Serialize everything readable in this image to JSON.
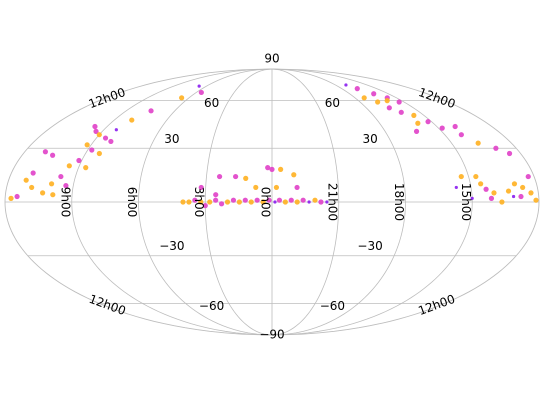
{
  "chart_data": {
    "type": "scatter",
    "projection": "mollweide",
    "grid": true,
    "colors": {
      "magenta": "#e040c8",
      "orange": "#ffb020",
      "purple": "#8a1cf0",
      "grid": "#bdbdbd"
    },
    "lat_labels": [
      {
        "id": "lat-90n",
        "text": "90",
        "lat": 90
      },
      {
        "id": "lat-60n-left",
        "text": "60",
        "lat": 60,
        "side": "left"
      },
      {
        "id": "lat-60n-right",
        "text": "60",
        "lat": 60,
        "side": "right"
      },
      {
        "id": "lat-30n-left",
        "text": "30",
        "lat": 30,
        "side": "left"
      },
      {
        "id": "lat-30n-right",
        "text": "30",
        "lat": 30,
        "side": "right"
      },
      {
        "id": "lat-30s-left",
        "text": "−30",
        "lat": -30,
        "side": "left"
      },
      {
        "id": "lat-30s-right",
        "text": "−30",
        "lat": -30,
        "side": "right"
      },
      {
        "id": "lat-60s-left",
        "text": "−60",
        "lat": -60,
        "side": "left"
      },
      {
        "id": "lat-60s-right",
        "text": "−60",
        "lat": -60,
        "side": "right"
      },
      {
        "id": "lat-90s",
        "text": "−90",
        "lat": -90
      }
    ],
    "ra_labels": [
      {
        "id": "ra-0h",
        "text": "0h00",
        "lon": 0
      },
      {
        "id": "ra-3h",
        "text": "3h00",
        "lon": 45
      },
      {
        "id": "ra-6h",
        "text": "6h00",
        "lon": 90
      },
      {
        "id": "ra-9h",
        "text": "9h00",
        "lon": 135
      },
      {
        "id": "ra-21h",
        "text": "21h00",
        "lon": -45
      },
      {
        "id": "ra-18h",
        "text": "18h00",
        "lon": -90
      },
      {
        "id": "ra-15h",
        "text": "15h00",
        "lon": -135
      }
    ],
    "edge_labels": [
      {
        "id": "ra-12h-top-left",
        "text": "12h00",
        "lat": 60,
        "side": "left"
      },
      {
        "id": "ra-12h-top-right",
        "text": "12h00",
        "lat": 60,
        "side": "right"
      },
      {
        "id": "ra-12h-bottom-left",
        "text": "12h00",
        "lat": -60,
        "side": "left"
      },
      {
        "id": "ra-12h-bottom-right",
        "text": "12h00",
        "lat": -60,
        "side": "right"
      }
    ],
    "points": [
      {
        "lon": 2,
        "lat": 1,
        "c": "magenta"
      },
      {
        "lon": 6,
        "lat": 0,
        "c": "orange"
      },
      {
        "lon": 10,
        "lat": 1,
        "c": "magenta"
      },
      {
        "lon": 14,
        "lat": 0,
        "c": "orange"
      },
      {
        "lon": 18,
        "lat": 1,
        "c": "magenta"
      },
      {
        "lon": 22,
        "lat": 0,
        "c": "orange"
      },
      {
        "lon": 26,
        "lat": 1,
        "c": "magenta"
      },
      {
        "lon": 30,
        "lat": 0,
        "c": "orange"
      },
      {
        "lon": 34,
        "lat": -1,
        "c": "magenta"
      },
      {
        "lon": 38,
        "lat": 1,
        "c": "magenta"
      },
      {
        "lon": 42,
        "lat": 0,
        "c": "orange"
      },
      {
        "lon": 45,
        "lat": -2,
        "c": "magenta"
      },
      {
        "lon": 48,
        "lat": 0,
        "c": "orange"
      },
      {
        "lon": 52,
        "lat": 1,
        "c": "magenta"
      },
      {
        "lon": 56,
        "lat": 0,
        "c": "orange"
      },
      {
        "lon": 60,
        "lat": 0,
        "c": "orange"
      },
      {
        "lon": -2,
        "lat": 0,
        "c": "purple"
      },
      {
        "lon": -5,
        "lat": 1,
        "c": "magenta"
      },
      {
        "lon": -9,
        "lat": 0,
        "c": "orange"
      },
      {
        "lon": -13,
        "lat": 1,
        "c": "magenta"
      },
      {
        "lon": -17,
        "lat": 0,
        "c": "orange"
      },
      {
        "lon": -21,
        "lat": 1,
        "c": "magenta"
      },
      {
        "lon": -25,
        "lat": 0,
        "c": "purple"
      },
      {
        "lon": -29,
        "lat": 1,
        "c": "orange"
      },
      {
        "lon": -33,
        "lat": 0,
        "c": "magenta"
      },
      {
        "lon": -37,
        "lat": 0,
        "c": "purple"
      },
      {
        "lon": 3,
        "lat": 19,
        "c": "magenta"
      },
      {
        "lon": 0,
        "lat": 18,
        "c": "magenta"
      },
      {
        "lon": -6,
        "lat": 18,
        "c": "orange"
      },
      {
        "lon": -15,
        "lat": 15,
        "c": "orange"
      },
      {
        "lon": -17,
        "lat": 8,
        "c": "magenta"
      },
      {
        "lon": -3,
        "lat": 8,
        "c": "orange"
      },
      {
        "lon": 11,
        "lat": 8,
        "c": "orange"
      },
      {
        "lon": 25,
        "lat": 14,
        "c": "magenta"
      },
      {
        "lon": 18,
        "lat": 13,
        "c": "orange"
      },
      {
        "lon": 36,
        "lat": 14,
        "c": "magenta"
      },
      {
        "lon": 48,
        "lat": 8,
        "c": "magenta"
      },
      {
        "lon": 38,
        "lat": 4,
        "c": "magenta"
      },
      {
        "lon": 145,
        "lat": 43,
        "c": "magenta"
      },
      {
        "lon": 140,
        "lat": 40,
        "c": "magenta"
      },
      {
        "lon": 135,
        "lat": 38,
        "c": "orange"
      },
      {
        "lon": 128,
        "lat": 36,
        "c": "magenta"
      },
      {
        "lon": 122,
        "lat": 34,
        "c": "magenta"
      },
      {
        "lon": 138,
        "lat": 32,
        "c": "orange"
      },
      {
        "lon": 132,
        "lat": 29,
        "c": "magenta"
      },
      {
        "lon": 125,
        "lat": 27,
        "c": "orange"
      },
      {
        "lon": 137,
        "lat": 23,
        "c": "magenta"
      },
      {
        "lon": 142,
        "lat": 20,
        "c": "orange"
      },
      {
        "lon": 130,
        "lat": 19,
        "c": "orange"
      },
      {
        "lon": 145,
        "lat": 14,
        "c": "magenta"
      },
      {
        "lon": 150,
        "lat": 10,
        "c": "orange"
      },
      {
        "lon": 140,
        "lat": 9,
        "c": "magenta"
      },
      {
        "lon": 155,
        "lat": 5,
        "c": "orange"
      },
      {
        "lon": 148,
        "lat": 4,
        "c": "orange"
      },
      {
        "lon": 165,
        "lat": 16,
        "c": "magenta"
      },
      {
        "lon": 168,
        "lat": 12,
        "c": "orange"
      },
      {
        "lon": 163,
        "lat": 8,
        "c": "orange"
      },
      {
        "lon": 172,
        "lat": 3,
        "c": "magenta"
      },
      {
        "lon": 176,
        "lat": 2,
        "c": "orange"
      },
      {
        "lon": 158,
        "lat": 26,
        "c": "magenta"
      },
      {
        "lon": 165,
        "lat": 28,
        "c": "magenta"
      },
      {
        "lon": 120,
        "lat": 47,
        "c": "orange"
      },
      {
        "lon": 112,
        "lat": 53,
        "c": "magenta"
      },
      {
        "lon": 98,
        "lat": 62,
        "c": "orange"
      },
      {
        "lon": 84,
        "lat": 66,
        "c": "magenta"
      },
      {
        "lon": 100,
        "lat": 71,
        "c": "purple"
      },
      {
        "lon": 125,
        "lat": 41,
        "c": "purple"
      },
      {
        "lon": -105,
        "lat": 72,
        "c": "purple"
      },
      {
        "lon": -110,
        "lat": 69,
        "c": "magenta"
      },
      {
        "lon": -118,
        "lat": 65,
        "c": "magenta"
      },
      {
        "lon": -125,
        "lat": 62,
        "c": "magenta"
      },
      {
        "lon": -120,
        "lat": 60,
        "c": "orange"
      },
      {
        "lon": -130,
        "lat": 59,
        "c": "magenta"
      },
      {
        "lon": -108,
        "lat": 59,
        "c": "orange"
      },
      {
        "lon": -112,
        "lat": 55,
        "c": "magenta"
      },
      {
        "lon": -118,
        "lat": 52,
        "c": "magenta"
      },
      {
        "lon": -126,
        "lat": 50,
        "c": "orange"
      },
      {
        "lon": -132,
        "lat": 46,
        "c": "magenta"
      },
      {
        "lon": -122,
        "lat": 45,
        "c": "orange"
      },
      {
        "lon": -138,
        "lat": 42,
        "c": "magenta"
      },
      {
        "lon": -115,
        "lat": 40,
        "c": "magenta"
      },
      {
        "lon": -150,
        "lat": 43,
        "c": "magenta"
      },
      {
        "lon": -148,
        "lat": 38,
        "c": "magenta"
      },
      {
        "lon": -155,
        "lat": 33,
        "c": "orange"
      },
      {
        "lon": -165,
        "lat": 30,
        "c": "magenta"
      },
      {
        "lon": -172,
        "lat": 27,
        "c": "magenta"
      },
      {
        "lon": -140,
        "lat": 14,
        "c": "orange"
      },
      {
        "lon": -142,
        "lat": 10,
        "c": "orange"
      },
      {
        "lon": -145,
        "lat": 7,
        "c": "magenta"
      },
      {
        "lon": -150,
        "lat": 5,
        "c": "orange"
      },
      {
        "lon": -148,
        "lat": 2,
        "c": "magenta"
      },
      {
        "lon": -155,
        "lat": 0,
        "c": "orange"
      },
      {
        "lon": -160,
        "lat": 6,
        "c": "orange"
      },
      {
        "lon": -163,
        "lat": 3,
        "c": "purple"
      },
      {
        "lon": -165,
        "lat": 10,
        "c": "orange"
      },
      {
        "lon": -170,
        "lat": 8,
        "c": "orange"
      },
      {
        "lon": -168,
        "lat": 3,
        "c": "magenta"
      },
      {
        "lon": -175,
        "lat": 5,
        "c": "orange"
      },
      {
        "lon": -178,
        "lat": 1,
        "c": "orange"
      },
      {
        "lon": -176,
        "lat": 14,
        "c": "magenta"
      },
      {
        "lon": -130,
        "lat": 14,
        "c": "orange"
      },
      {
        "lon": -125,
        "lat": 8,
        "c": "purple"
      },
      {
        "lon": -135,
        "lat": 2,
        "c": "purple"
      },
      {
        "lon": -100,
        "lat": 62,
        "c": "orange"
      }
    ]
  }
}
